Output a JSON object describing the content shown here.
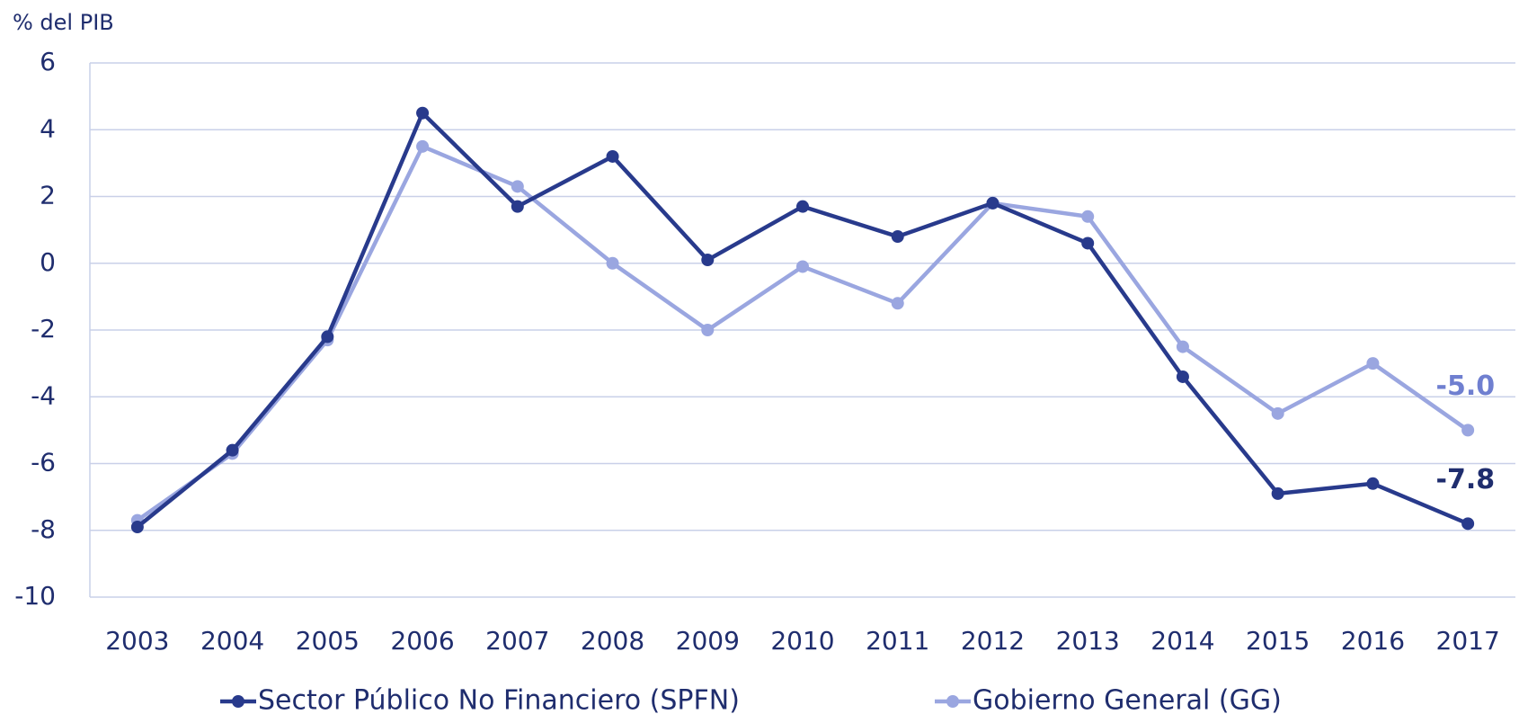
{
  "chart_data": {
    "type": "line",
    "y_label": "% del PIB",
    "categories": [
      "2003",
      "2004",
      "2005",
      "2006",
      "2007",
      "2008",
      "2009",
      "2010",
      "2011",
      "2012",
      "2013",
      "2014",
      "2015",
      "2016",
      "2017"
    ],
    "series": [
      {
        "name": "Sector Público No Financiero (SPFN)",
        "color": "#283a8c",
        "values": [
          -7.9,
          -5.6,
          -2.2,
          4.5,
          1.7,
          3.2,
          0.1,
          1.7,
          0.8,
          1.8,
          0.6,
          -3.4,
          -6.9,
          -6.6,
          -7.8
        ],
        "value_labels": [
          null,
          null,
          null,
          null,
          null,
          null,
          null,
          null,
          null,
          null,
          null,
          null,
          null,
          null,
          "-7.8"
        ]
      },
      {
        "name": "Gobierno General (GG)",
        "color": "#9aa6e0",
        "values": [
          -7.7,
          -5.7,
          -2.3,
          3.5,
          2.3,
          0.0,
          -2.0,
          -0.1,
          -1.2,
          1.8,
          1.4,
          -2.5,
          -4.5,
          -3.0,
          -5.0
        ],
        "value_labels": [
          null,
          null,
          null,
          null,
          null,
          null,
          null,
          null,
          null,
          null,
          null,
          null,
          null,
          null,
          "-5.0"
        ]
      }
    ],
    "ylim": [
      -10,
      6
    ],
    "yticks": [
      -10,
      -8,
      -6,
      -4,
      -2,
      0,
      2,
      4,
      6
    ],
    "grid": true,
    "legend": "bottom"
  }
}
